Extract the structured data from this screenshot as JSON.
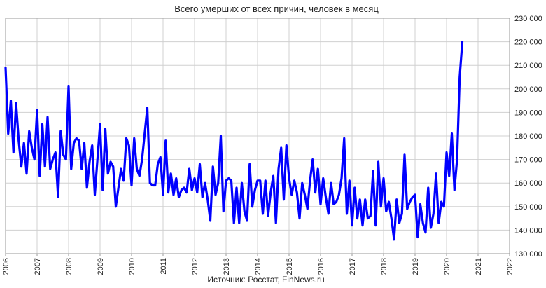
{
  "chart_data": {
    "type": "line",
    "title": "Всего умерших от всех причин, человек в месяц",
    "source": "Источник: Росстат, FinNews.ru",
    "xlabel": "",
    "ylabel": "",
    "ylim": [
      130000,
      230000
    ],
    "y_ticks": [
      130000,
      140000,
      150000,
      160000,
      170000,
      180000,
      190000,
      200000,
      210000,
      220000,
      230000
    ],
    "y_tick_labels": [
      "130 000",
      "140 000",
      "150 000",
      "160 000",
      "170 000",
      "180 000",
      "190 000",
      "200 000",
      "210 000",
      "220 000",
      "230 000"
    ],
    "x_tick_labels": [
      "2006",
      "2007",
      "2008",
      "2009",
      "2010",
      "2011",
      "2012",
      "2013",
      "2014",
      "2015",
      "2016",
      "2017",
      "2018",
      "2019",
      "2020",
      "2021",
      "2022"
    ],
    "grid": true,
    "line_color": "#0000ff",
    "series": [
      {
        "x_start": "2006-01",
        "values": [
          209000,
          181000,
          195000,
          173000,
          194000,
          178000,
          167000,
          177000,
          164000,
          182000,
          175000,
          170000,
          191000,
          163000,
          185000,
          167000,
          188000,
          166000,
          170000,
          173000,
          154000,
          182000,
          172000,
          170000,
          201000,
          166000,
          177000,
          179000,
          178000,
          166000,
          177000,
          158000,
          169000,
          176000,
          155000,
          170000,
          185000,
          157000,
          183000,
          164000,
          169000,
          167000,
          150000,
          158000,
          166000,
          161000,
          179000,
          176000,
          159000,
          179000,
          166000,
          163000,
          170000,
          181000,
          192000,
          160000,
          159000,
          159000,
          168000,
          171000,
          155000,
          178000,
          156000,
          164000,
          155000,
          162000,
          154000,
          157000,
          158000,
          156000,
          166000,
          157000,
          162000,
          156000,
          168000,
          154000,
          160000,
          153000,
          144000,
          167000,
          155000,
          160000,
          180000,
          148000,
          161000,
          162000,
          161000,
          143000,
          158000,
          143000,
          160000,
          148000,
          144000,
          168000,
          150000,
          157000,
          161000,
          161000,
          147000,
          161000,
          146000,
          156000,
          163000,
          143000,
          166000,
          175000,
          153000,
          176000,
          162000,
          155000,
          161000,
          156000,
          145000,
          160000,
          155000,
          149000,
          161000,
          170000,
          156000,
          166000,
          151000,
          162000,
          154000,
          147000,
          160000,
          151000,
          152000,
          155000,
          162000,
          179000,
          147000,
          161000,
          142000,
          158000,
          145000,
          153000,
          142000,
          153000,
          145000,
          146000,
          165000,
          142000,
          169000,
          150000,
          162000,
          148000,
          152000,
          145000,
          136000,
          153000,
          143000,
          147000,
          172000,
          149000,
          152000,
          154000,
          155000,
          137000,
          151000,
          143000,
          139000,
          158000,
          141000,
          147000,
          164000,
          143000,
          152000,
          150000,
          173000,
          163000,
          181000,
          157000,
          170000,
          205000,
          220000
        ]
      }
    ]
  }
}
